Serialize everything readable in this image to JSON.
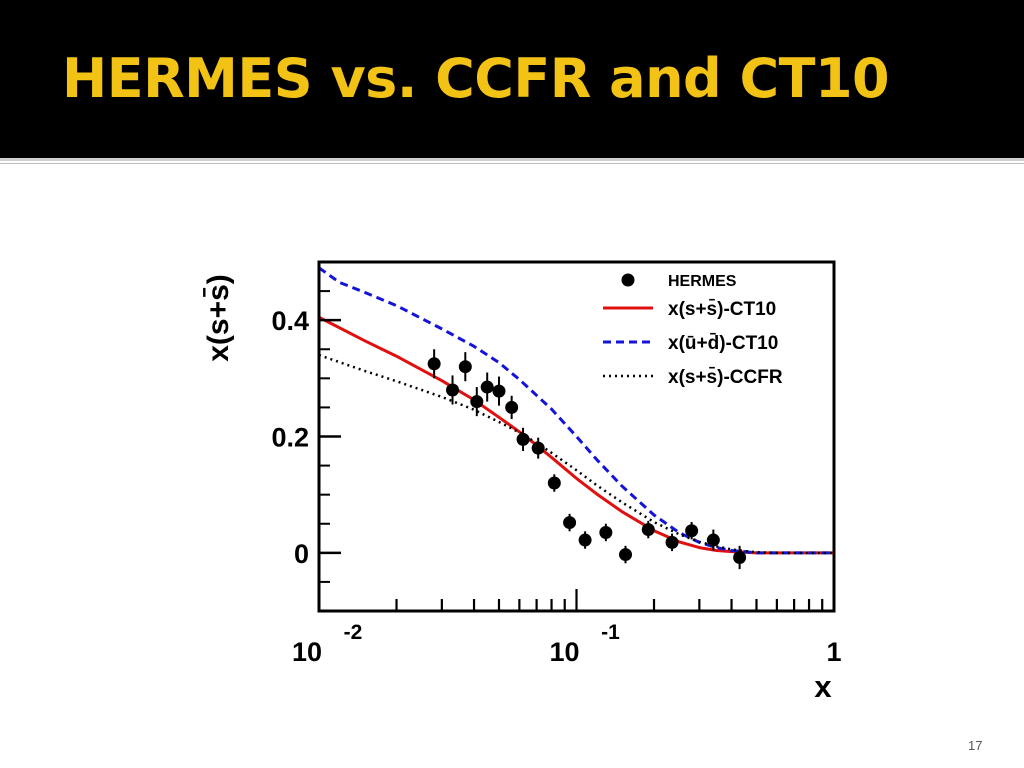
{
  "slide": {
    "title": "HERMES vs. CCFR and CT10",
    "number": "17"
  },
  "colors": {
    "title_bar": "#000000",
    "title_text": "#f2c314",
    "ct10_strange": "#e01010",
    "ct10_ubar_dbar": "#1414d8",
    "ccfr": "#000000",
    "hermes": "#000000"
  },
  "chart_data": {
    "type": "line",
    "xlabel": "x",
    "ylabel": "x(s+s̄)",
    "x_scale": "log",
    "xlim": [
      0.01,
      1
    ],
    "ylim": [
      -0.1,
      0.5
    ],
    "x_tick_labels": [
      {
        "value": 0.01,
        "base": "10",
        "exp": "-2"
      },
      {
        "value": 0.1,
        "base": "10",
        "exp": "-1"
      },
      {
        "value": 1,
        "base": "1",
        "exp": ""
      }
    ],
    "y_ticks": [
      {
        "value": 0.4,
        "label": "0.4"
      },
      {
        "value": 0.2,
        "label": "0.2"
      },
      {
        "value": 0,
        "label": "0"
      }
    ],
    "legend": {
      "placement": "top-right",
      "entries": [
        {
          "label": "HERMES",
          "style": "marker"
        },
        {
          "label": "x(s+s̄)-CT10",
          "style": "solid"
        },
        {
          "label": "x(ū+d̄)-CT10",
          "style": "dashed"
        },
        {
          "label": "x(s+s̄)-CCFR",
          "style": "dotted"
        }
      ]
    },
    "series": [
      {
        "name": "x(s+s̄)-CT10",
        "style": "solid",
        "x": [
          0.01,
          0.015,
          0.02,
          0.03,
          0.04,
          0.05,
          0.06,
          0.07,
          0.08,
          0.1,
          0.12,
          0.15,
          0.2,
          0.25,
          0.3,
          0.35,
          0.4,
          0.45,
          0.5,
          0.6,
          0.8,
          1.0
        ],
        "y": [
          0.405,
          0.365,
          0.338,
          0.296,
          0.263,
          0.233,
          0.208,
          0.185,
          0.164,
          0.128,
          0.101,
          0.071,
          0.038,
          0.019,
          0.009,
          0.004,
          0.002,
          0.001,
          0.0,
          0.0,
          0.0,
          0.0
        ]
      },
      {
        "name": "x(ū+d̄)-CT10",
        "style": "dashed",
        "x": [
          0.01,
          0.012,
          0.015,
          0.02,
          0.03,
          0.04,
          0.05,
          0.06,
          0.08,
          0.1,
          0.12,
          0.15,
          0.2,
          0.25,
          0.3,
          0.35,
          0.4,
          0.45,
          0.5,
          0.6,
          0.8,
          1.0
        ],
        "y": [
          0.49,
          0.465,
          0.448,
          0.425,
          0.385,
          0.355,
          0.327,
          0.298,
          0.247,
          0.2,
          0.16,
          0.115,
          0.065,
          0.035,
          0.018,
          0.009,
          0.004,
          0.002,
          0.0,
          0.0,
          0.0,
          0.0
        ]
      },
      {
        "name": "x(s+s̄)-CCFR",
        "style": "dotted",
        "x": [
          0.01,
          0.015,
          0.02,
          0.03,
          0.04,
          0.05,
          0.06,
          0.07,
          0.08,
          0.1,
          0.12,
          0.15,
          0.2,
          0.25,
          0.3,
          0.35,
          0.4,
          0.45,
          0.5,
          0.6,
          0.8,
          1.0
        ],
        "y": [
          0.34,
          0.313,
          0.295,
          0.268,
          0.246,
          0.225,
          0.207,
          0.189,
          0.172,
          0.142,
          0.116,
          0.087,
          0.053,
          0.032,
          0.019,
          0.011,
          0.006,
          0.003,
          0.001,
          0.0,
          0.0,
          0.0
        ]
      },
      {
        "name": "HERMES",
        "style": "marker",
        "x": [
          0.028,
          0.033,
          0.037,
          0.041,
          0.045,
          0.05,
          0.056,
          0.062,
          0.071,
          0.082,
          0.094,
          0.108,
          0.13,
          0.155,
          0.19,
          0.235,
          0.28,
          0.34,
          0.43
        ],
        "y": [
          0.325,
          0.28,
          0.32,
          0.26,
          0.285,
          0.278,
          0.25,
          0.195,
          0.18,
          0.12,
          0.052,
          0.022,
          0.035,
          -0.003,
          0.04,
          0.018,
          0.038,
          0.022,
          -0.008
        ],
        "err": [
          0.025,
          0.025,
          0.025,
          0.025,
          0.025,
          0.025,
          0.02,
          0.02,
          0.018,
          0.015,
          0.015,
          0.015,
          0.015,
          0.015,
          0.015,
          0.015,
          0.015,
          0.018,
          0.02
        ]
      }
    ]
  }
}
